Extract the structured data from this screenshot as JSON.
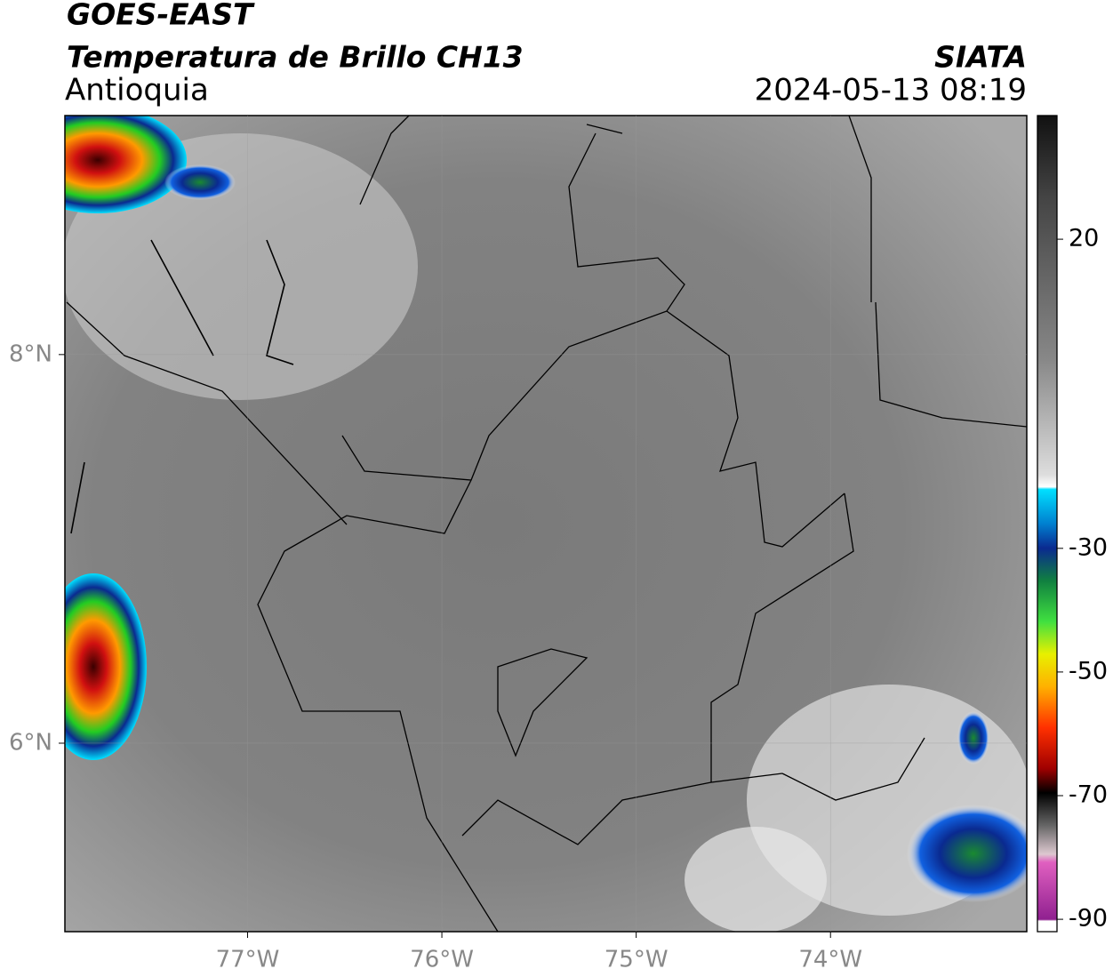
{
  "header": {
    "title": "GOES-EAST",
    "subtitle": "Temperatura de Brillo CH13",
    "region": "Antioquia",
    "source": "SIATA",
    "datetime": "2024-05-13 08:19"
  },
  "map": {
    "xlim": [
      -77.94,
      -72.99
    ],
    "ylim": [
      5.03,
      9.23
    ],
    "xticks": [
      {
        "value": -77,
        "label": "77°W"
      },
      {
        "value": -76,
        "label": "76°W"
      },
      {
        "value": -75,
        "label": "75°W"
      },
      {
        "value": -74,
        "label": "74°W"
      }
    ],
    "yticks": [
      {
        "value": 8,
        "label": "8°N"
      },
      {
        "value": 6,
        "label": "6°N"
      }
    ],
    "grid": true
  },
  "colorbar": {
    "lim": [
      -92,
      40
    ],
    "ticks": [
      20,
      -30,
      -50,
      -70,
      -90
    ]
  }
}
